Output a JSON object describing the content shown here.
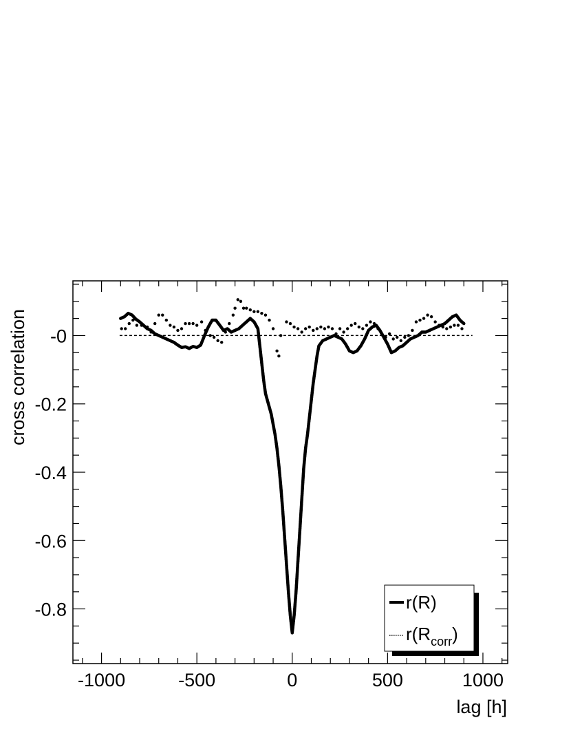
{
  "chart_data": {
    "type": "scatter",
    "xlabel": "lag [h]",
    "ylabel": "cross correlation",
    "xlim": [
      -1150,
      1130
    ],
    "ylim": [
      -0.96,
      0.16
    ],
    "x_ticks": [
      -1000,
      -500,
      0,
      500,
      1000
    ],
    "x_tick_labels": [
      "-1000",
      "-500",
      "0",
      "500",
      "1000"
    ],
    "y_ticks": [
      0,
      -0.2,
      -0.4,
      -0.6,
      -0.8
    ],
    "y_tick_labels": [
      "-0",
      "-0.2",
      "-0.4",
      "-0.6",
      "-0.8"
    ],
    "grid": false,
    "reference_line": {
      "y": 0,
      "x_range": [
        -1150,
        1130
      ],
      "style": "dashed"
    },
    "legend": {
      "position": "bottom-right",
      "entries": [
        {
          "label": "r(R)",
          "style": "solid"
        },
        {
          "label_main": "r(R",
          "label_sub": "corr",
          "label_end": ")",
          "style": "dotted"
        }
      ]
    },
    "series": [
      {
        "key": "r_R",
        "style": "dense-dots",
        "color": "#000000",
        "points": [
          [
            -900,
            0.05
          ],
          [
            -880,
            0.055
          ],
          [
            -860,
            0.065
          ],
          [
            -840,
            0.06
          ],
          [
            -820,
            0.048
          ],
          [
            -800,
            0.04
          ],
          [
            -780,
            0.03
          ],
          [
            -760,
            0.02
          ],
          [
            -740,
            0.015
          ],
          [
            -720,
            0.005
          ],
          [
            -700,
            0.0
          ],
          [
            -680,
            -0.005
          ],
          [
            -660,
            -0.01
          ],
          [
            -640,
            -0.015
          ],
          [
            -620,
            -0.02
          ],
          [
            -600,
            -0.028
          ],
          [
            -580,
            -0.035
          ],
          [
            -560,
            -0.033
          ],
          [
            -540,
            -0.038
          ],
          [
            -520,
            -0.032
          ],
          [
            -500,
            -0.035
          ],
          [
            -480,
            -0.028
          ],
          [
            -460,
            0.0
          ],
          [
            -440,
            0.025
          ],
          [
            -420,
            0.045
          ],
          [
            -400,
            0.045
          ],
          [
            -380,
            0.03
          ],
          [
            -360,
            0.015
          ],
          [
            -340,
            0.02
          ],
          [
            -320,
            0.01
          ],
          [
            -300,
            0.015
          ],
          [
            -280,
            0.02
          ],
          [
            -260,
            0.03
          ],
          [
            -240,
            0.04
          ],
          [
            -220,
            0.05
          ],
          [
            -200,
            0.04
          ],
          [
            -180,
            0.02
          ],
          [
            -170,
            -0.03
          ],
          [
            -160,
            -0.08
          ],
          [
            -150,
            -0.13
          ],
          [
            -140,
            -0.17
          ],
          [
            -130,
            -0.19
          ],
          [
            -120,
            -0.21
          ],
          [
            -110,
            -0.23
          ],
          [
            -100,
            -0.26
          ],
          [
            -90,
            -0.29
          ],
          [
            -80,
            -0.33
          ],
          [
            -70,
            -0.38
          ],
          [
            -60,
            -0.44
          ],
          [
            -50,
            -0.51
          ],
          [
            -40,
            -0.59
          ],
          [
            -30,
            -0.67
          ],
          [
            -20,
            -0.75
          ],
          [
            -10,
            -0.82
          ],
          [
            0,
            -0.87
          ],
          [
            10,
            -0.82
          ],
          [
            20,
            -0.75
          ],
          [
            30,
            -0.66
          ],
          [
            40,
            -0.57
          ],
          [
            50,
            -0.48
          ],
          [
            60,
            -0.39
          ],
          [
            70,
            -0.33
          ],
          [
            80,
            -0.29
          ],
          [
            90,
            -0.24
          ],
          [
            100,
            -0.19
          ],
          [
            110,
            -0.14
          ],
          [
            120,
            -0.1
          ],
          [
            130,
            -0.06
          ],
          [
            140,
            -0.03
          ],
          [
            160,
            -0.015
          ],
          [
            180,
            -0.01
          ],
          [
            200,
            -0.005
          ],
          [
            220,
            0.0
          ],
          [
            240,
            -0.005
          ],
          [
            260,
            -0.01
          ],
          [
            280,
            -0.025
          ],
          [
            300,
            -0.045
          ],
          [
            320,
            -0.05
          ],
          [
            340,
            -0.045
          ],
          [
            360,
            -0.03
          ],
          [
            380,
            -0.01
          ],
          [
            400,
            0.015
          ],
          [
            420,
            0.025
          ],
          [
            440,
            0.03
          ],
          [
            460,
            0.015
          ],
          [
            480,
            -0.005
          ],
          [
            500,
            -0.025
          ],
          [
            520,
            -0.05
          ],
          [
            540,
            -0.045
          ],
          [
            560,
            -0.035
          ],
          [
            580,
            -0.03
          ],
          [
            600,
            -0.02
          ],
          [
            620,
            -0.01
          ],
          [
            640,
            -0.005
          ],
          [
            660,
            0.0
          ],
          [
            680,
            0.01
          ],
          [
            700,
            0.01
          ],
          [
            720,
            0.015
          ],
          [
            740,
            0.02
          ],
          [
            760,
            0.025
          ],
          [
            780,
            0.03
          ],
          [
            800,
            0.035
          ],
          [
            820,
            0.045
          ],
          [
            840,
            0.055
          ],
          [
            860,
            0.06
          ],
          [
            880,
            0.045
          ],
          [
            900,
            0.035
          ]
        ]
      },
      {
        "key": "r_Rcorr",
        "style": "sparse-dots",
        "color": "#000000",
        "points": [
          [
            -895,
            0.02
          ],
          [
            -875,
            0.02
          ],
          [
            -855,
            0.035
          ],
          [
            -835,
            0.045
          ],
          [
            -815,
            0.03
          ],
          [
            -790,
            0.03
          ],
          [
            -760,
            0.025
          ],
          [
            -740,
            0.01
          ],
          [
            -720,
            0.035
          ],
          [
            -700,
            0.06
          ],
          [
            -680,
            0.06
          ],
          [
            -660,
            0.045
          ],
          [
            -640,
            0.03
          ],
          [
            -620,
            0.025
          ],
          [
            -600,
            0.015
          ],
          [
            -580,
            0.02
          ],
          [
            -560,
            0.035
          ],
          [
            -540,
            0.035
          ],
          [
            -520,
            0.035
          ],
          [
            -500,
            0.03
          ],
          [
            -475,
            0.04
          ],
          [
            -455,
            0.015
          ],
          [
            -430,
            0.0
          ],
          [
            -410,
            -0.005
          ],
          [
            -390,
            -0.015
          ],
          [
            -370,
            -0.02
          ],
          [
            -350,
            0.01
          ],
          [
            -330,
            0.035
          ],
          [
            -310,
            0.06
          ],
          [
            -300,
            0.08
          ],
          [
            -285,
            0.105
          ],
          [
            -270,
            0.1
          ],
          [
            -255,
            0.08
          ],
          [
            -240,
            0.08
          ],
          [
            -220,
            0.075
          ],
          [
            -200,
            0.07
          ],
          [
            -180,
            0.07
          ],
          [
            -160,
            0.065
          ],
          [
            -140,
            0.06
          ],
          [
            -120,
            0.045
          ],
          [
            -100,
            0.02
          ],
          [
            -80,
            -0.045
          ],
          [
            -70,
            -0.06
          ],
          [
            -60,
            0.0
          ],
          [
            -30,
            0.04
          ],
          [
            -10,
            0.035
          ],
          [
            10,
            0.025
          ],
          [
            30,
            0.02
          ],
          [
            50,
            0.01
          ],
          [
            70,
            0.02
          ],
          [
            90,
            0.025
          ],
          [
            110,
            0.015
          ],
          [
            130,
            0.02
          ],
          [
            150,
            0.025
          ],
          [
            170,
            0.02
          ],
          [
            190,
            0.025
          ],
          [
            210,
            0.02
          ],
          [
            230,
            0.005
          ],
          [
            250,
            0.02
          ],
          [
            270,
            0.01
          ],
          [
            290,
            0.02
          ],
          [
            310,
            0.03
          ],
          [
            330,
            0.035
          ],
          [
            350,
            0.025
          ],
          [
            370,
            0.02
          ],
          [
            390,
            0.03
          ],
          [
            410,
            0.04
          ],
          [
            430,
            0.035
          ],
          [
            450,
            0.02
          ],
          [
            470,
            0.005
          ],
          [
            490,
            -0.005
          ],
          [
            510,
            0.005
          ],
          [
            530,
            -0.01
          ],
          [
            550,
            -0.005
          ],
          [
            570,
            -0.015
          ],
          [
            590,
            -0.005
          ],
          [
            610,
            0.0
          ],
          [
            630,
            0.015
          ],
          [
            650,
            0.04
          ],
          [
            670,
            0.045
          ],
          [
            690,
            0.05
          ],
          [
            710,
            0.06
          ],
          [
            730,
            0.055
          ],
          [
            750,
            0.04
          ],
          [
            770,
            0.03
          ],
          [
            790,
            0.025
          ],
          [
            810,
            0.02
          ],
          [
            830,
            0.025
          ],
          [
            850,
            0.03
          ],
          [
            870,
            0.03
          ],
          [
            890,
            0.02
          ]
        ]
      }
    ]
  }
}
